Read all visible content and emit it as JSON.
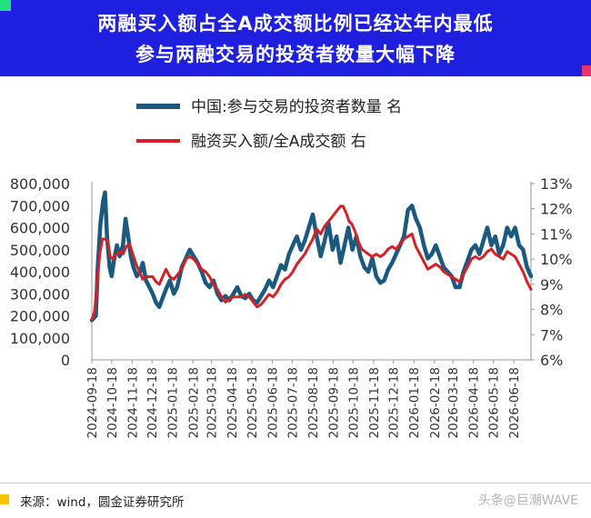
{
  "header": {
    "title_line1": "两融买入额占全A成交额比例已经达年内最低",
    "title_line2": "参与两融交易的投资者数量大幅下降"
  },
  "colors": {
    "header_bg": "#1f1fdf",
    "investors_series": "#1b5a7e",
    "ratio_series": "#d42027",
    "corner_green": "#21e27c",
    "corner_pink": "#e8346f",
    "source_marker": "#f5c400"
  },
  "chart_data": {
    "type": "line",
    "title": "",
    "xlabel": "",
    "ylabel": "",
    "x_ticks": [
      "2024-09-18",
      "2024-10-18",
      "2024-11-18",
      "2024-12-18",
      "2025-01-18",
      "2025-02-18",
      "2025-03-18",
      "2025-04-18",
      "2025-05-18",
      "2025-06-18",
      "2025-07-18",
      "2025-08-18",
      "2025-09-18",
      "2025-10-18",
      "2025-11-18",
      "2025-12-18",
      "2026-01-18",
      "2026-02-18",
      "2026-03-18",
      "2026-04-18",
      "2026-05-18",
      "2026-06-18"
    ],
    "y_left_ticks": [
      "800,000",
      "700,000",
      "600,000",
      "500,000",
      "400,000",
      "300,000",
      "200,000",
      "100,000",
      "0"
    ],
    "y_left_range": [
      0,
      800000
    ],
    "y_right_ticks": [
      "13%",
      "12%",
      "11%",
      "10%",
      "9%",
      "8%",
      "7%",
      "6%"
    ],
    "y_right_range": [
      6,
      13
    ],
    "grid": false,
    "legend_position": "top",
    "series": [
      {
        "name": "中国:参与交易的投资者数量 名",
        "axis": "left",
        "values": [
          [
            "2024-09-18",
            180000
          ],
          [
            "2024-09-24",
            200000
          ],
          [
            "2024-09-27",
            420000
          ],
          [
            "2024-10-01",
            620000
          ],
          [
            "2024-10-05",
            720000
          ],
          [
            "2024-10-08",
            760000
          ],
          [
            "2024-10-11",
            560000
          ],
          [
            "2024-10-15",
            420000
          ],
          [
            "2024-10-18",
            380000
          ],
          [
            "2024-10-22",
            460000
          ],
          [
            "2024-10-26",
            520000
          ],
          [
            "2024-10-30",
            470000
          ],
          [
            "2024-11-04",
            520000
          ],
          [
            "2024-11-08",
            640000
          ],
          [
            "2024-11-12",
            560000
          ],
          [
            "2024-11-16",
            470000
          ],
          [
            "2024-11-20",
            420000
          ],
          [
            "2024-11-25",
            380000
          ],
          [
            "2024-11-30",
            400000
          ],
          [
            "2024-12-04",
            440000
          ],
          [
            "2024-12-09",
            360000
          ],
          [
            "2024-12-14",
            330000
          ],
          [
            "2024-12-19",
            300000
          ],
          [
            "2024-12-24",
            260000
          ],
          [
            "2024-12-29",
            240000
          ],
          [
            "2025-01-03",
            280000
          ],
          [
            "2025-01-08",
            320000
          ],
          [
            "2025-01-14",
            360000
          ],
          [
            "2025-01-20",
            300000
          ],
          [
            "2025-01-25",
            330000
          ],
          [
            "2025-02-01",
            420000
          ],
          [
            "2025-02-07",
            460000
          ],
          [
            "2025-02-13",
            500000
          ],
          [
            "2025-02-19",
            470000
          ],
          [
            "2025-02-25",
            440000
          ],
          [
            "2025-03-03",
            400000
          ],
          [
            "2025-03-09",
            350000
          ],
          [
            "2025-03-15",
            330000
          ],
          [
            "2025-03-21",
            360000
          ],
          [
            "2025-03-27",
            300000
          ],
          [
            "2025-04-02",
            270000
          ],
          [
            "2025-04-08",
            290000
          ],
          [
            "2025-04-14",
            270000
          ],
          [
            "2025-04-20",
            300000
          ],
          [
            "2025-04-26",
            330000
          ],
          [
            "2025-05-02",
            290000
          ],
          [
            "2025-05-08",
            280000
          ],
          [
            "2025-05-14",
            300000
          ],
          [
            "2025-05-20",
            270000
          ],
          [
            "2025-05-26",
            260000
          ],
          [
            "2025-06-01",
            290000
          ],
          [
            "2025-06-07",
            320000
          ],
          [
            "2025-06-13",
            360000
          ],
          [
            "2025-06-19",
            330000
          ],
          [
            "2025-06-25",
            380000
          ],
          [
            "2025-07-01",
            430000
          ],
          [
            "2025-07-07",
            410000
          ],
          [
            "2025-07-13",
            480000
          ],
          [
            "2025-07-19",
            520000
          ],
          [
            "2025-07-25",
            560000
          ],
          [
            "2025-07-31",
            500000
          ],
          [
            "2025-08-06",
            540000
          ],
          [
            "2025-08-12",
            600000
          ],
          [
            "2025-08-18",
            660000
          ],
          [
            "2025-08-24",
            560000
          ],
          [
            "2025-08-30",
            470000
          ],
          [
            "2025-09-05",
            540000
          ],
          [
            "2025-09-11",
            620000
          ],
          [
            "2025-09-17",
            500000
          ],
          [
            "2025-09-23",
            560000
          ],
          [
            "2025-09-29",
            440000
          ],
          [
            "2025-10-05",
            520000
          ],
          [
            "2025-10-11",
            600000
          ],
          [
            "2025-10-17",
            500000
          ],
          [
            "2025-10-23",
            560000
          ],
          [
            "2025-10-29",
            470000
          ],
          [
            "2025-11-04",
            420000
          ],
          [
            "2025-11-10",
            400000
          ],
          [
            "2025-11-16",
            460000
          ],
          [
            "2025-11-22",
            380000
          ],
          [
            "2025-11-28",
            350000
          ],
          [
            "2025-12-04",
            360000
          ],
          [
            "2025-12-10",
            410000
          ],
          [
            "2025-12-16",
            440000
          ],
          [
            "2025-12-22",
            480000
          ],
          [
            "2025-12-28",
            520000
          ],
          [
            "2026-01-03",
            560000
          ],
          [
            "2026-01-09",
            680000
          ],
          [
            "2026-01-15",
            700000
          ],
          [
            "2026-01-21",
            640000
          ],
          [
            "2026-01-27",
            600000
          ],
          [
            "2026-02-02",
            520000
          ],
          [
            "2026-02-08",
            460000
          ],
          [
            "2026-02-14",
            480000
          ],
          [
            "2026-02-20",
            520000
          ],
          [
            "2026-02-26",
            470000
          ],
          [
            "2026-03-04",
            420000
          ],
          [
            "2026-03-10",
            400000
          ],
          [
            "2026-03-16",
            380000
          ],
          [
            "2026-03-22",
            330000
          ],
          [
            "2026-03-28",
            330000
          ],
          [
            "2026-04-03",
            400000
          ],
          [
            "2026-04-09",
            450000
          ],
          [
            "2026-04-15",
            500000
          ],
          [
            "2026-04-21",
            520000
          ],
          [
            "2026-04-27",
            480000
          ],
          [
            "2026-05-03",
            540000
          ],
          [
            "2026-05-09",
            600000
          ],
          [
            "2026-05-15",
            520000
          ],
          [
            "2026-05-21",
            560000
          ],
          [
            "2026-05-27",
            480000
          ],
          [
            "2026-06-02",
            520000
          ],
          [
            "2026-06-08",
            600000
          ],
          [
            "2026-06-14",
            560000
          ],
          [
            "2026-06-20",
            600000
          ],
          [
            "2026-06-26",
            520000
          ],
          [
            "2026-07-02",
            500000
          ],
          [
            "2026-07-08",
            420000
          ],
          [
            "2026-07-14",
            380000
          ]
        ]
      },
      {
        "name": "融资买入额/全A成交额 右",
        "axis": "right",
        "values": [
          [
            "2024-09-18",
            7.6
          ],
          [
            "2024-09-22",
            7.9
          ],
          [
            "2024-09-26",
            9.0
          ],
          [
            "2024-09-30",
            10.2
          ],
          [
            "2024-10-04",
            10.8
          ],
          [
            "2024-10-08",
            10.8
          ],
          [
            "2024-10-12",
            10.7
          ],
          [
            "2024-10-16",
            10.1
          ],
          [
            "2024-10-20",
            10.0
          ],
          [
            "2024-10-25",
            10.2
          ],
          [
            "2024-10-30",
            10.3
          ],
          [
            "2024-11-04",
            10.2
          ],
          [
            "2024-11-09",
            10.5
          ],
          [
            "2024-11-14",
            10.6
          ],
          [
            "2024-11-19",
            10.2
          ],
          [
            "2024-11-24",
            9.8
          ],
          [
            "2024-11-29",
            9.5
          ],
          [
            "2024-12-04",
            9.2
          ],
          [
            "2024-12-09",
            9.3
          ],
          [
            "2024-12-14",
            9.3
          ],
          [
            "2024-12-19",
            9.3
          ],
          [
            "2024-12-24",
            9.1
          ],
          [
            "2024-12-29",
            9.0
          ],
          [
            "2025-01-03",
            9.3
          ],
          [
            "2025-01-08",
            9.6
          ],
          [
            "2025-01-14",
            9.3
          ],
          [
            "2025-01-20",
            9.2
          ],
          [
            "2025-01-26",
            9.4
          ],
          [
            "2025-02-01",
            9.6
          ],
          [
            "2025-02-07",
            10.0
          ],
          [
            "2025-02-13",
            10.1
          ],
          [
            "2025-02-19",
            10.0
          ],
          [
            "2025-02-25",
            9.8
          ],
          [
            "2025-03-03",
            9.6
          ],
          [
            "2025-03-09",
            9.5
          ],
          [
            "2025-03-15",
            9.3
          ],
          [
            "2025-03-21",
            9.0
          ],
          [
            "2025-03-27",
            8.8
          ],
          [
            "2025-04-02",
            8.5
          ],
          [
            "2025-04-08",
            8.3
          ],
          [
            "2025-04-14",
            8.4
          ],
          [
            "2025-04-20",
            8.5
          ],
          [
            "2025-04-26",
            8.5
          ],
          [
            "2025-05-02",
            8.5
          ],
          [
            "2025-05-08",
            8.6
          ],
          [
            "2025-05-14",
            8.5
          ],
          [
            "2025-05-20",
            8.3
          ],
          [
            "2025-05-26",
            8.1
          ],
          [
            "2025-06-01",
            8.2
          ],
          [
            "2025-06-07",
            8.4
          ],
          [
            "2025-06-13",
            8.6
          ],
          [
            "2025-06-19",
            8.5
          ],
          [
            "2025-06-25",
            8.7
          ],
          [
            "2025-07-01",
            9.0
          ],
          [
            "2025-07-07",
            9.2
          ],
          [
            "2025-07-13",
            9.3
          ],
          [
            "2025-07-19",
            9.5
          ],
          [
            "2025-07-25",
            9.8
          ],
          [
            "2025-07-31",
            10.0
          ],
          [
            "2025-08-06",
            10.2
          ],
          [
            "2025-08-12",
            10.5
          ],
          [
            "2025-08-18",
            10.8
          ],
          [
            "2025-08-24",
            11.2
          ],
          [
            "2025-08-30",
            11.0
          ],
          [
            "2025-09-05",
            11.3
          ],
          [
            "2025-09-11",
            11.5
          ],
          [
            "2025-09-17",
            11.7
          ],
          [
            "2025-09-23",
            11.9
          ],
          [
            "2025-09-29",
            12.1
          ],
          [
            "2025-10-03",
            12.1
          ],
          [
            "2025-10-08",
            11.8
          ],
          [
            "2025-10-12",
            11.5
          ],
          [
            "2025-10-16",
            11.4
          ],
          [
            "2025-10-21",
            11.1
          ],
          [
            "2025-10-26",
            10.7
          ],
          [
            "2025-10-31",
            10.4
          ],
          [
            "2025-11-05",
            10.3
          ],
          [
            "2025-11-10",
            10.2
          ],
          [
            "2025-11-16",
            10.1
          ],
          [
            "2025-11-22",
            10.2
          ],
          [
            "2025-11-28",
            10.1
          ],
          [
            "2025-12-04",
            10.2
          ],
          [
            "2025-12-10",
            10.4
          ],
          [
            "2025-12-16",
            10.5
          ],
          [
            "2025-12-22",
            10.4
          ],
          [
            "2025-12-28",
            10.6
          ],
          [
            "2026-01-03",
            10.8
          ],
          [
            "2026-01-09",
            10.9
          ],
          [
            "2026-01-15",
            11.0
          ],
          [
            "2026-01-21",
            10.5
          ],
          [
            "2026-01-27",
            10.2
          ],
          [
            "2026-02-02",
            9.9
          ],
          [
            "2026-02-08",
            9.6
          ],
          [
            "2026-02-14",
            9.7
          ],
          [
            "2026-02-20",
            9.8
          ],
          [
            "2026-02-26",
            9.7
          ],
          [
            "2026-03-04",
            9.5
          ],
          [
            "2026-03-10",
            9.4
          ],
          [
            "2026-03-16",
            9.3
          ],
          [
            "2026-03-22",
            9.2
          ],
          [
            "2026-03-28",
            9.1
          ],
          [
            "2026-04-03",
            9.4
          ],
          [
            "2026-04-09",
            9.7
          ],
          [
            "2026-04-15",
            10.0
          ],
          [
            "2026-04-21",
            10.1
          ],
          [
            "2026-04-27",
            10.0
          ],
          [
            "2026-05-03",
            10.1
          ],
          [
            "2026-05-09",
            10.3
          ],
          [
            "2026-05-15",
            10.4
          ],
          [
            "2026-05-21",
            10.2
          ],
          [
            "2026-05-27",
            10.1
          ],
          [
            "2026-06-02",
            10.0
          ],
          [
            "2026-06-08",
            10.3
          ],
          [
            "2026-06-14",
            10.2
          ],
          [
            "2026-06-20",
            10.1
          ],
          [
            "2026-06-26",
            9.8
          ],
          [
            "2026-07-02",
            9.5
          ],
          [
            "2026-07-08",
            9.1
          ],
          [
            "2026-07-14",
            8.8
          ]
        ]
      }
    ]
  },
  "footer": {
    "source": "来源：wind，圆金证券研究所",
    "watermark": "头条@巨潮WAVE"
  }
}
